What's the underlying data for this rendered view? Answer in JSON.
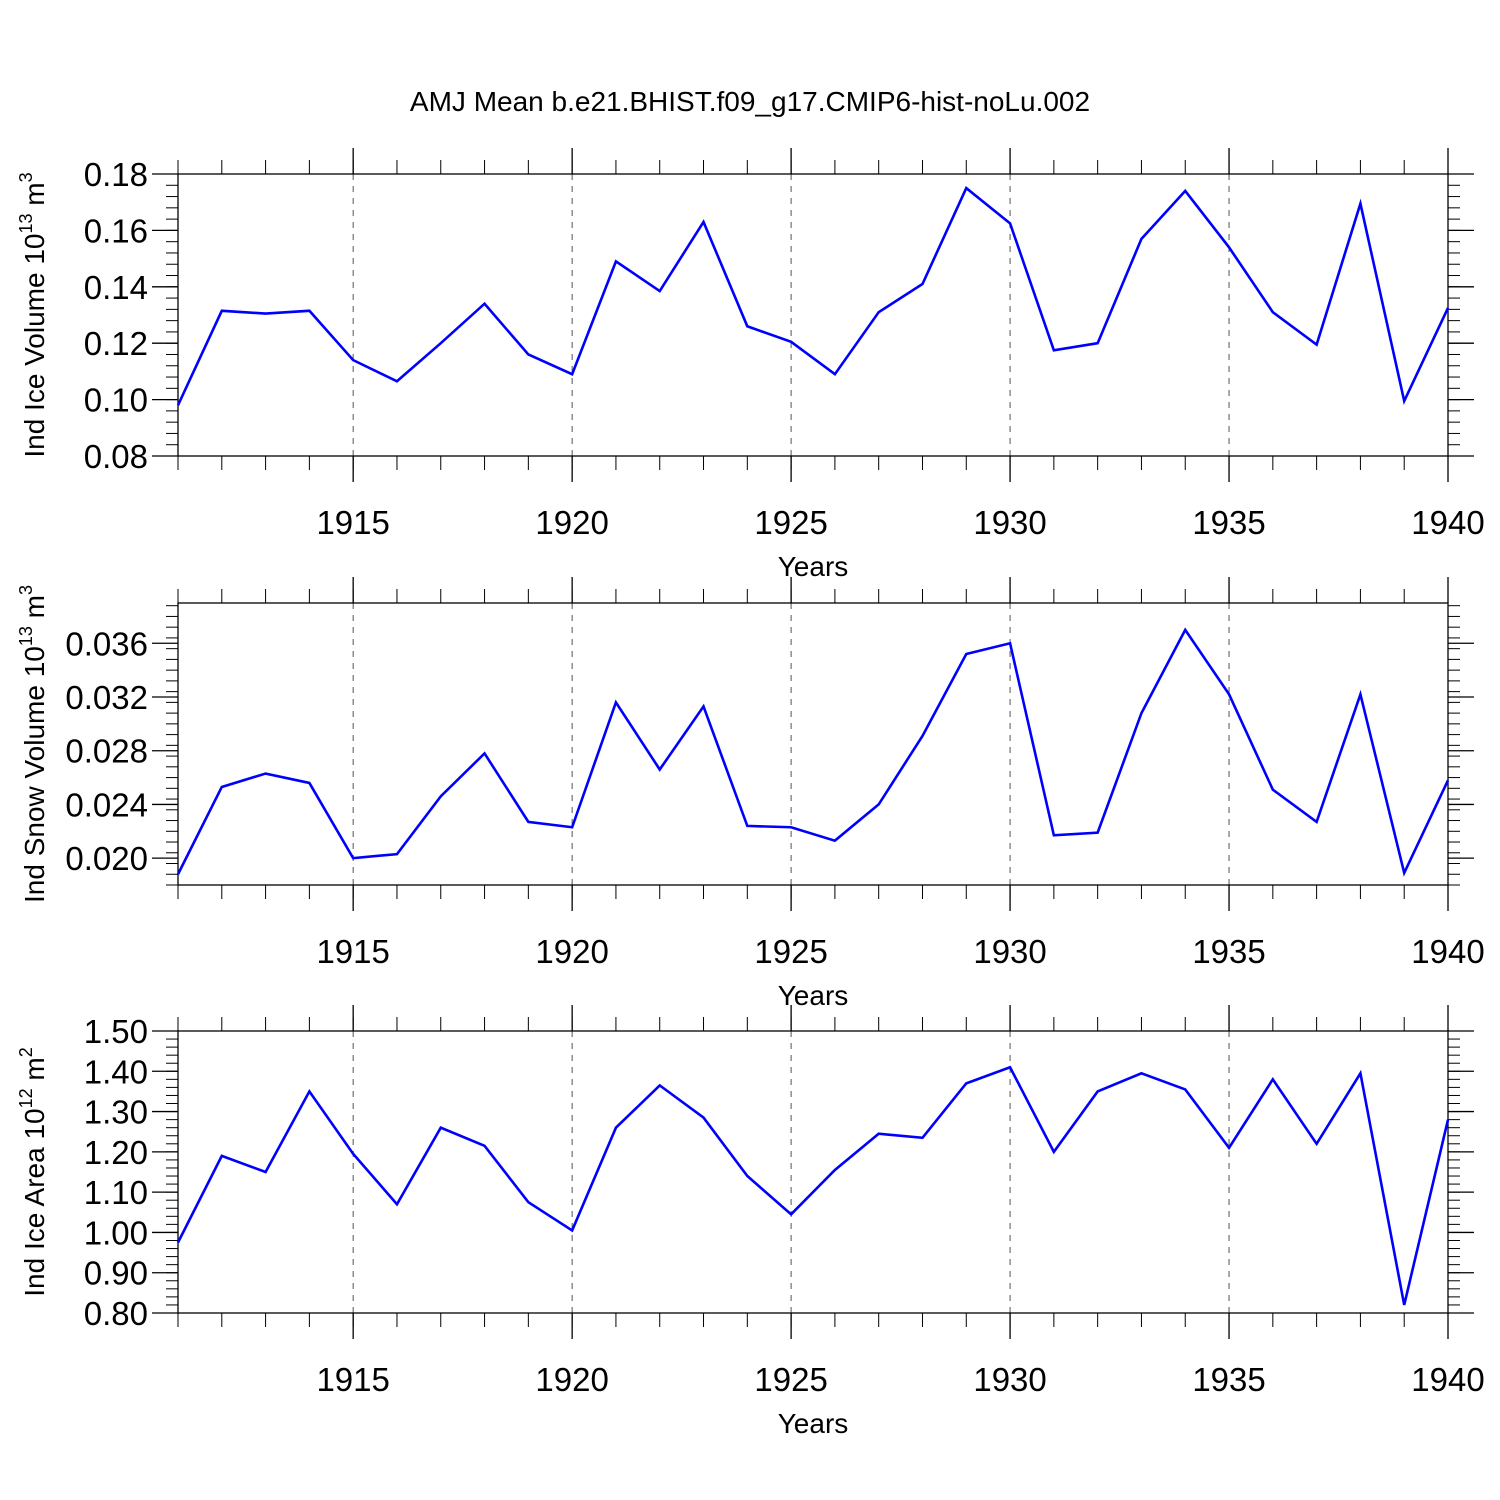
{
  "title": "AMJ Mean b.e21.BHIST.f09_g17.CMIP6-hist-noLu.002",
  "colors": {
    "line": "#0000ff",
    "axis": "#000000",
    "grid": "#555555"
  },
  "chart_data": [
    {
      "type": "line",
      "ylabel": "Ind Ice Volume 10",
      "ylabel_exp": "13",
      "ylabel_unit": " m",
      "ylabel_unit_exp": "3",
      "xlabel": "Years",
      "xlim": [
        1911,
        1940
      ],
      "ylim": [
        0.08,
        0.18
      ],
      "x_tick_values": [
        1915,
        1920,
        1925,
        1930,
        1935,
        1940
      ],
      "x_tick_labels": [
        "1915",
        "1920",
        "1925",
        "1930",
        "1935",
        "1940"
      ],
      "y_tick_values": [
        0.08,
        0.1,
        0.12,
        0.14,
        0.16,
        0.18
      ],
      "y_tick_labels": [
        "0.08",
        "0.10",
        "0.12",
        "0.14",
        "0.16",
        "0.18"
      ],
      "x": [
        1911,
        1912,
        1913,
        1914,
        1915,
        1916,
        1917,
        1918,
        1919,
        1920,
        1921,
        1922,
        1923,
        1924,
        1925,
        1926,
        1927,
        1928,
        1929,
        1930,
        1931,
        1932,
        1933,
        1934,
        1935,
        1936,
        1937,
        1938,
        1939,
        1940
      ],
      "series": [
        {
          "name": "Ind Ice Volume",
          "values": [
            0.098,
            0.1315,
            0.1305,
            0.1315,
            0.114,
            0.1065,
            0.12,
            0.134,
            0.116,
            0.109,
            0.149,
            0.1385,
            0.163,
            0.126,
            0.1205,
            0.109,
            0.131,
            0.141,
            0.175,
            0.1625,
            0.1175,
            0.12,
            0.157,
            0.174,
            0.154,
            0.131,
            0.1195,
            0.1695,
            0.0995,
            0.1325
          ]
        }
      ]
    },
    {
      "type": "line",
      "ylabel": "Ind Snow Volume 10",
      "ylabel_exp": "13",
      "ylabel_unit": " m",
      "ylabel_unit_exp": "3",
      "xlabel": "Years",
      "xlim": [
        1911,
        1940
      ],
      "ylim": [
        0.018,
        0.039
      ],
      "x_tick_values": [
        1915,
        1920,
        1925,
        1930,
        1935,
        1940
      ],
      "x_tick_labels": [
        "1915",
        "1920",
        "1925",
        "1930",
        "1935",
        "1940"
      ],
      "y_tick_values": [
        0.02,
        0.024,
        0.028,
        0.032,
        0.036
      ],
      "y_tick_labels": [
        "0.020",
        "0.024",
        "0.028",
        "0.032",
        "0.036"
      ],
      "x": [
        1911,
        1912,
        1913,
        1914,
        1915,
        1916,
        1917,
        1918,
        1919,
        1920,
        1921,
        1922,
        1923,
        1924,
        1925,
        1926,
        1927,
        1928,
        1929,
        1930,
        1931,
        1932,
        1933,
        1934,
        1935,
        1936,
        1937,
        1938,
        1939,
        1940
      ],
      "series": [
        {
          "name": "Ind Snow Volume",
          "values": [
            0.0188,
            0.0253,
            0.0263,
            0.0256,
            0.02,
            0.0203,
            0.0246,
            0.0278,
            0.0227,
            0.0223,
            0.0316,
            0.0266,
            0.0313,
            0.0224,
            0.0223,
            0.0213,
            0.024,
            0.0291,
            0.0352,
            0.036,
            0.0217,
            0.0219,
            0.0308,
            0.037,
            0.0322,
            0.0251,
            0.0227,
            0.0322,
            0.0189,
            0.0258
          ]
        }
      ]
    },
    {
      "type": "line",
      "ylabel": "Ind Ice Area 10",
      "ylabel_exp": "12",
      "ylabel_unit": " m",
      "ylabel_unit_exp": "2",
      "xlabel": "Years",
      "xlim": [
        1911,
        1940
      ],
      "ylim": [
        0.8,
        1.5
      ],
      "x_tick_values": [
        1915,
        1920,
        1925,
        1930,
        1935,
        1940
      ],
      "x_tick_labels": [
        "1915",
        "1920",
        "1925",
        "1930",
        "1935",
        "1940"
      ],
      "y_tick_values": [
        0.8,
        0.9,
        1.0,
        1.1,
        1.2,
        1.3,
        1.4,
        1.5
      ],
      "y_tick_labels": [
        "0.80",
        "0.90",
        "1.00",
        "1.10",
        "1.20",
        "1.30",
        "1.40",
        "1.50"
      ],
      "x": [
        1911,
        1912,
        1913,
        1914,
        1915,
        1916,
        1917,
        1918,
        1919,
        1920,
        1921,
        1922,
        1923,
        1924,
        1925,
        1926,
        1927,
        1928,
        1929,
        1930,
        1931,
        1932,
        1933,
        1934,
        1935,
        1936,
        1937,
        1938,
        1939,
        1940
      ],
      "series": [
        {
          "name": "Ind Ice Area",
          "values": [
            0.975,
            1.19,
            1.15,
            1.35,
            1.195,
            1.07,
            1.26,
            1.215,
            1.075,
            1.005,
            1.26,
            1.365,
            1.285,
            1.14,
            1.045,
            1.155,
            1.245,
            1.235,
            1.37,
            1.41,
            1.2,
            1.35,
            1.395,
            1.355,
            1.21,
            1.38,
            1.22,
            1.395,
            0.82,
            1.28
          ]
        }
      ]
    }
  ]
}
